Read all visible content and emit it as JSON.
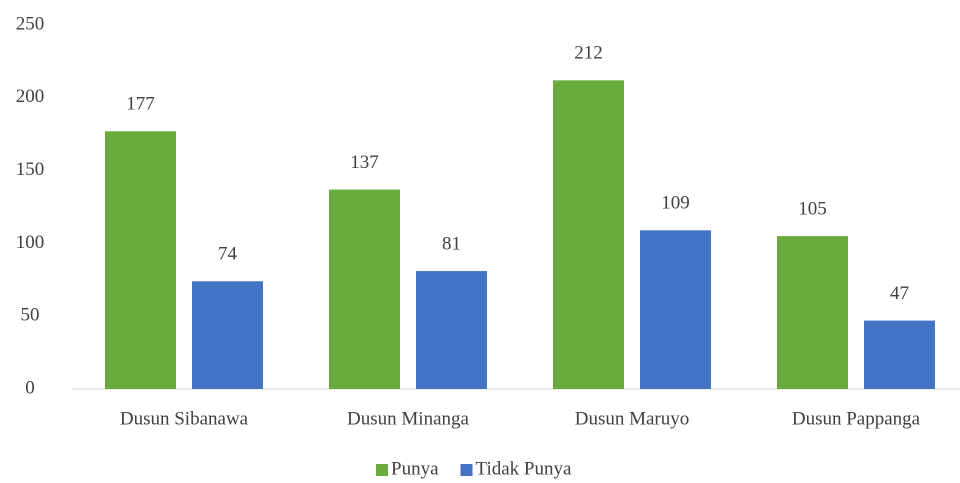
{
  "chart_data": {
    "type": "bar",
    "categories": [
      "Dusun Sibanawa",
      "Dusun Minanga",
      "Dusun Maruyo",
      "Dusun Pappanga"
    ],
    "series": [
      {
        "name": "Punya",
        "color": "#6aab3e",
        "values": [
          177,
          137,
          212,
          105
        ]
      },
      {
        "name": "Tidak Punya",
        "color": "#4472c4",
        "values": [
          74,
          81,
          109,
          47
        ]
      }
    ],
    "ylim": [
      0,
      250
    ],
    "yticks": [
      0,
      50,
      100,
      150,
      200,
      250
    ],
    "grid": false,
    "legend": "bottom"
  }
}
